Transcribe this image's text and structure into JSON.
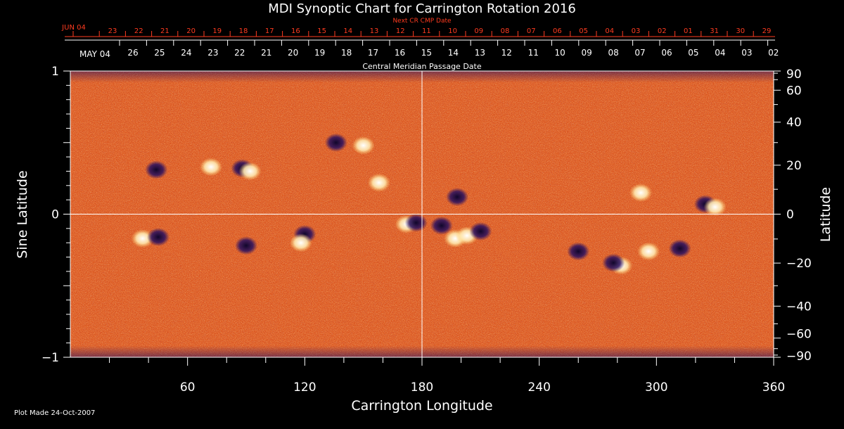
{
  "colors": {
    "background": "#000000",
    "text": "#ffffff",
    "red_text": "#ff3b1f",
    "map_base": "#e0531b",
    "map_dark": "#c0280c",
    "map_bright": "#ffd070",
    "neg_polarity": "#2a1060",
    "pos_polarity": "#ffffff"
  },
  "chart_data": {
    "type": "heatmap",
    "title": "MDI Synoptic Chart for Carrington Rotation 2016",
    "xlabel": "Carrington Longitude",
    "ylabel_left": "Sine Latitude",
    "ylabel_right": "Latitude",
    "xlim": [
      0,
      360
    ],
    "ylim": [
      -1,
      1
    ],
    "x_ticks": [
      60,
      120,
      180,
      240,
      300,
      360
    ],
    "x_tick_labels": [
      "60",
      "120",
      "180",
      "240",
      "300",
      "360"
    ],
    "y_ticks_left": [
      1,
      0,
      -1
    ],
    "y_tick_labels_left": [
      "1",
      "0",
      "−1"
    ],
    "y_ticks_right_deg": [
      90,
      60,
      40,
      20,
      0,
      -20,
      -40,
      -60,
      -90
    ],
    "y_tick_labels_right": [
      "90",
      "60",
      "40",
      "20",
      "0",
      "−20",
      "−40",
      "−60",
      "−90"
    ],
    "gridlines": {
      "x": [
        180
      ],
      "y": [
        0
      ]
    },
    "top_axis_red": {
      "label": "Next CR CMP Date",
      "month_label": "JUN 04",
      "day_labels": [
        "23",
        "22",
        "21",
        "20",
        "19",
        "18",
        "17",
        "16",
        "15",
        "14",
        "13",
        "12",
        "11",
        "10",
        "09",
        "08",
        "07",
        "06",
        "05",
        "04",
        "03",
        "02",
        "01",
        "31",
        "30",
        "29"
      ]
    },
    "top_axis_white": {
      "label": "Central Meridian Passage Date",
      "month_label": "MAY 04",
      "day_labels": [
        "26",
        "25",
        "24",
        "23",
        "22",
        "21",
        "20",
        "19",
        "18",
        "17",
        "16",
        "15",
        "14",
        "13",
        "12",
        "11",
        "10",
        "09",
        "08",
        "07",
        "06",
        "05",
        "04",
        "03",
        "02"
      ]
    },
    "footnote": "Plot Made 24-Oct-2007",
    "active_regions": [
      {
        "lon": 37,
        "sinlat": -0.17,
        "polarity": "positive"
      },
      {
        "lon": 45,
        "sinlat": -0.16,
        "polarity": "negative"
      },
      {
        "lon": 44,
        "sinlat": 0.31,
        "polarity": "negative"
      },
      {
        "lon": 88,
        "sinlat": 0.32,
        "polarity": "negative"
      },
      {
        "lon": 92,
        "sinlat": 0.3,
        "polarity": "positive"
      },
      {
        "lon": 72,
        "sinlat": 0.33,
        "polarity": "positive"
      },
      {
        "lon": 136,
        "sinlat": 0.5,
        "polarity": "negative"
      },
      {
        "lon": 150,
        "sinlat": 0.48,
        "polarity": "positive"
      },
      {
        "lon": 158,
        "sinlat": 0.22,
        "polarity": "positive"
      },
      {
        "lon": 120,
        "sinlat": -0.14,
        "polarity": "negative"
      },
      {
        "lon": 118,
        "sinlat": -0.2,
        "polarity": "positive"
      },
      {
        "lon": 90,
        "sinlat": -0.22,
        "polarity": "negative"
      },
      {
        "lon": 172,
        "sinlat": -0.07,
        "polarity": "positive"
      },
      {
        "lon": 177,
        "sinlat": -0.06,
        "polarity": "negative"
      },
      {
        "lon": 190,
        "sinlat": -0.08,
        "polarity": "negative"
      },
      {
        "lon": 197,
        "sinlat": -0.17,
        "polarity": "positive"
      },
      {
        "lon": 203,
        "sinlat": -0.15,
        "polarity": "positive"
      },
      {
        "lon": 210,
        "sinlat": -0.12,
        "polarity": "negative"
      },
      {
        "lon": 198,
        "sinlat": 0.12,
        "polarity": "negative"
      },
      {
        "lon": 260,
        "sinlat": -0.26,
        "polarity": "negative"
      },
      {
        "lon": 282,
        "sinlat": -0.36,
        "polarity": "positive"
      },
      {
        "lon": 278,
        "sinlat": -0.34,
        "polarity": "negative"
      },
      {
        "lon": 296,
        "sinlat": -0.26,
        "polarity": "positive"
      },
      {
        "lon": 312,
        "sinlat": -0.24,
        "polarity": "negative"
      },
      {
        "lon": 325,
        "sinlat": 0.07,
        "polarity": "negative"
      },
      {
        "lon": 330,
        "sinlat": 0.05,
        "polarity": "positive"
      },
      {
        "lon": 292,
        "sinlat": 0.15,
        "polarity": "positive"
      }
    ]
  }
}
